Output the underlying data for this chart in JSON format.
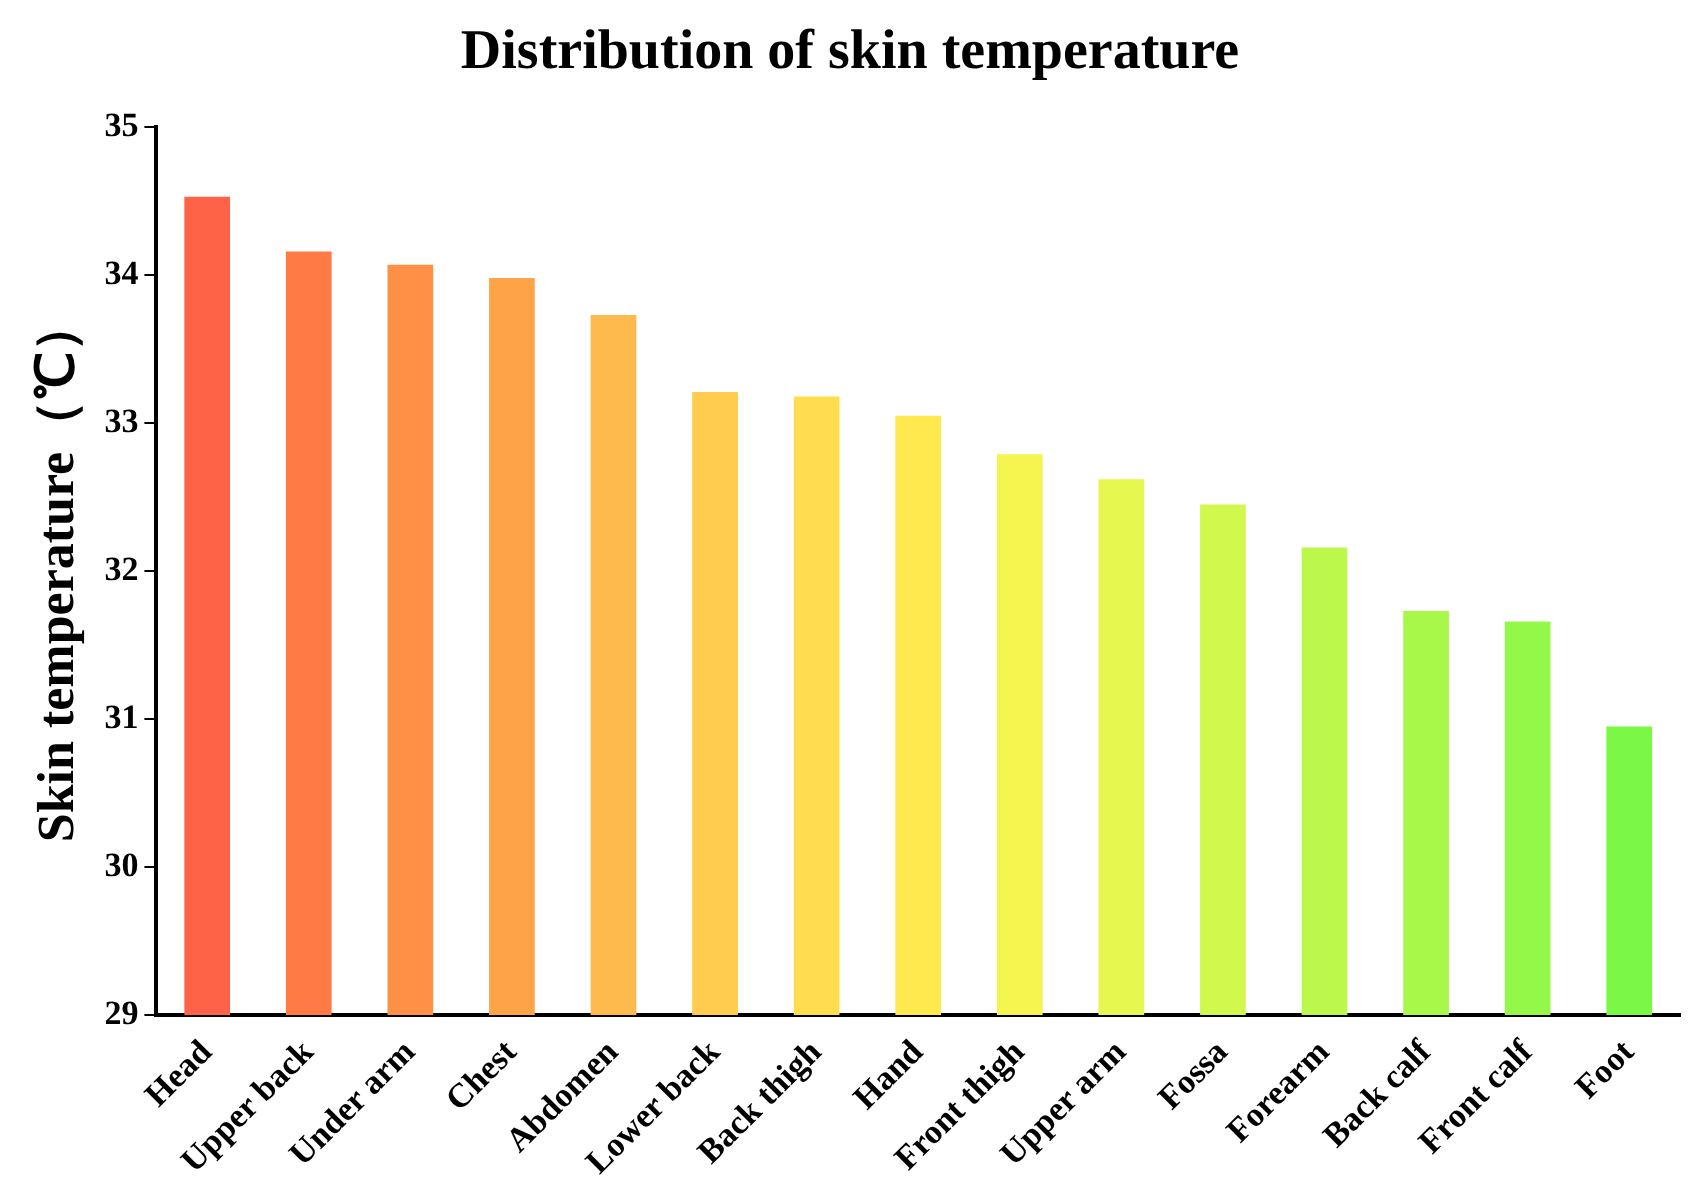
{
  "chart_data": {
    "type": "bar",
    "title": "Distribution of skin temperature",
    "ylabel": "Skin temperature（℃）",
    "categories": [
      "Head",
      "Upper back",
      "Under arm",
      "Chest",
      "Abdomen",
      "Lower back",
      "Back thigh",
      "Hand",
      "Front thigh",
      "Upper arm",
      "Fossa",
      "Forearm",
      "Back calf",
      "Front calf",
      "Foot"
    ],
    "values": [
      34.53,
      34.16,
      34.07,
      33.98,
      33.73,
      33.21,
      33.18,
      33.05,
      32.79,
      32.62,
      32.45,
      32.16,
      31.73,
      31.66,
      30.95
    ],
    "colors": [
      "#ff6347",
      "#ff7a45",
      "#ff9045",
      "#ffa348",
      "#ffba4d",
      "#ffcc4f",
      "#ffdd4f",
      "#ffe94f",
      "#f5f54f",
      "#e5f84f",
      "#d0f84d",
      "#bbf84b",
      "#a8f84a",
      "#93f848",
      "#7af845"
    ],
    "ylim": [
      29,
      35
    ],
    "yticks": [
      29,
      30,
      31,
      32,
      33,
      34,
      35
    ],
    "grid": false,
    "legend": false
  }
}
